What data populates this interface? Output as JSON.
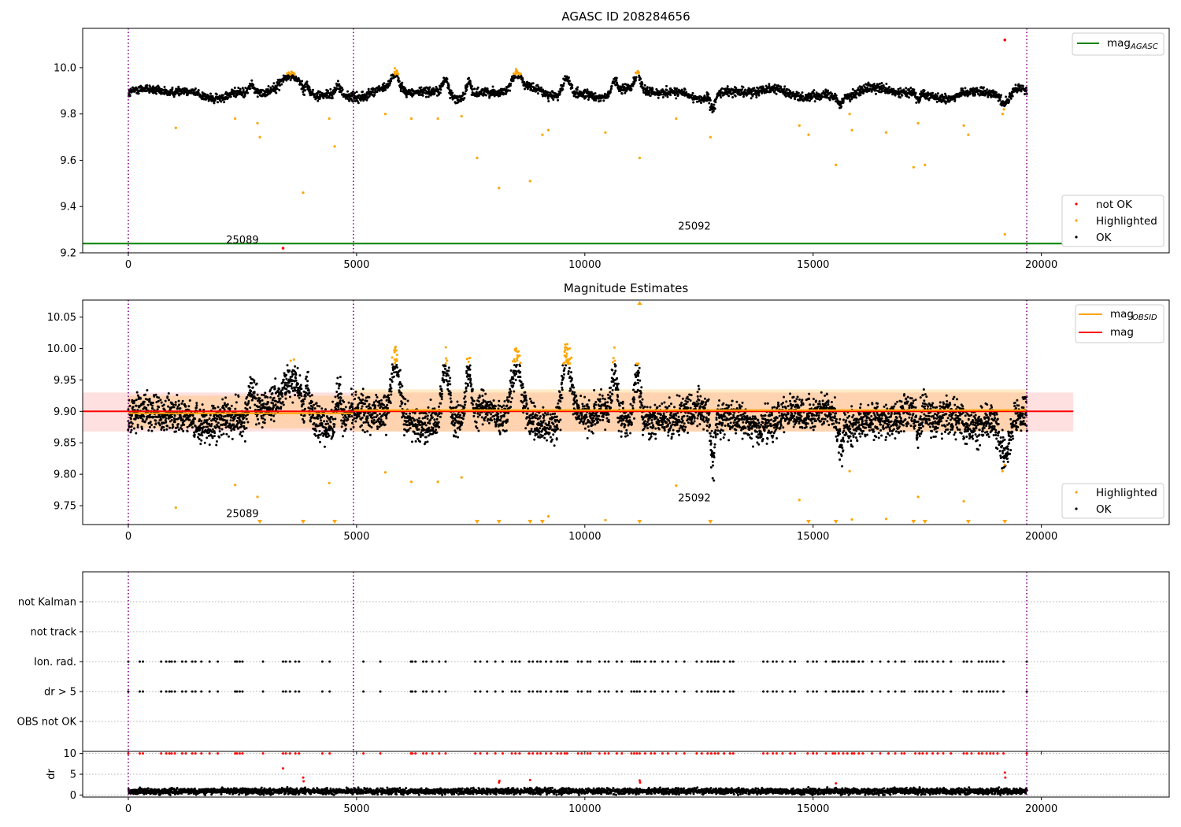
{
  "chart_data": [
    {
      "type": "scatter",
      "title": "AGASC ID 208284656",
      "xlim": [
        -1000,
        22800
      ],
      "ylim": [
        9.2,
        10.17
      ],
      "xticks": [
        0,
        5000,
        10000,
        15000,
        20000
      ],
      "yticks": [
        9.2,
        9.4,
        9.6,
        9.8,
        10.0
      ],
      "ytick_labels": [
        "9.2",
        "9.4",
        "9.6",
        "9.8",
        "10.0"
      ],
      "obsid_boundaries": [
        0,
        4930,
        19680
      ],
      "obsid_labels": [
        {
          "text": "25089",
          "x": 2500,
          "y": 9.24
        },
        {
          "text": "25092",
          "x": 12400,
          "y": 9.3
        }
      ],
      "reference_lines": [
        {
          "name": "mag",
          "subscript": "AGASC",
          "color": "#008000",
          "y": 9.24,
          "x_range": [
            -1000,
            20700
          ]
        }
      ],
      "series": [
        {
          "name": "OK",
          "color": "#000000",
          "baseline": 9.89,
          "spread": 0.025,
          "x_range": [
            0,
            19680
          ]
        },
        {
          "name": "Highlighted",
          "color": "#ffa500",
          "outliers_high_min": 9.97,
          "points": [
            [
              1040,
              9.74
            ],
            [
              2340,
              9.78
            ],
            [
              2830,
              9.76
            ],
            [
              2880,
              9.7
            ],
            [
              3830,
              9.46
            ],
            [
              4400,
              9.78
            ],
            [
              4520,
              9.66
            ],
            [
              5630,
              9.8
            ],
            [
              6200,
              9.78
            ],
            [
              6780,
              9.78
            ],
            [
              7300,
              9.79
            ],
            [
              7640,
              9.61
            ],
            [
              8120,
              9.48
            ],
            [
              8800,
              9.51
            ],
            [
              9070,
              9.71
            ],
            [
              9200,
              9.73
            ],
            [
              10450,
              9.72
            ],
            [
              11200,
              9.61
            ],
            [
              12000,
              9.78
            ],
            [
              12750,
              9.7
            ],
            [
              14700,
              9.75
            ],
            [
              14900,
              9.71
            ],
            [
              15500,
              9.58
            ],
            [
              15800,
              9.8
            ],
            [
              15850,
              9.73
            ],
            [
              16600,
              9.72
            ],
            [
              17200,
              9.57
            ],
            [
              17300,
              9.76
            ],
            [
              17450,
              9.58
            ],
            [
              18300,
              9.75
            ],
            [
              18400,
              9.71
            ],
            [
              19200,
              9.28
            ],
            [
              19150,
              9.8
            ],
            [
              19180,
              9.82
            ]
          ]
        },
        {
          "name": "not OK",
          "color": "#ff0000",
          "points": [
            [
              3390,
              9.22
            ],
            [
              19200,
              10.12
            ]
          ]
        }
      ],
      "legend": [
        {
          "label": "mag",
          "subscript": "AGASC",
          "kind": "line",
          "color": "#008000",
          "placement": "upper right"
        },
        {
          "label": "not OK",
          "kind": "point",
          "color": "#ff0000",
          "placement": "lower right"
        },
        {
          "label": "Highlighted",
          "kind": "point",
          "color": "#ffa500",
          "placement": "lower right"
        },
        {
          "label": "OK",
          "kind": "point",
          "color": "#000000",
          "placement": "lower right"
        }
      ]
    },
    {
      "type": "scatter",
      "title": "Magnitude Estimates",
      "xlim": [
        -1000,
        22800
      ],
      "ylim": [
        9.72,
        10.077
      ],
      "xticks": [
        0,
        5000,
        10000,
        15000,
        20000
      ],
      "yticks": [
        9.75,
        9.8,
        9.85,
        9.9,
        9.95,
        10.0,
        10.05
      ],
      "ytick_labels": [
        "9.75",
        "9.80",
        "9.85",
        "9.90",
        "9.95",
        "10.00",
        "10.05"
      ],
      "obsid_boundaries": [
        0,
        4930,
        19680
      ],
      "obsid_labels": [
        {
          "text": "25089",
          "x": 2500,
          "y": 9.732
        },
        {
          "text": "25092",
          "x": 12400,
          "y": 9.757
        }
      ],
      "bands": [
        {
          "color": "#ff0000",
          "opacity": 0.12,
          "x_range": [
            -1000,
            20700
          ],
          "y_range": [
            9.868,
            9.93
          ]
        },
        {
          "color": "#ffa500",
          "opacity": 0.22,
          "x_range": [
            0,
            4930
          ],
          "y_range": [
            9.873,
            9.925
          ]
        },
        {
          "color": "#ffa500",
          "opacity": 0.22,
          "x_range": [
            4930,
            19680
          ],
          "y_range": [
            9.868,
            9.935
          ]
        }
      ],
      "reference_lines": [
        {
          "name": "mag",
          "color": "#ff0000",
          "y": 9.9,
          "x_range": [
            -1000,
            20700
          ]
        },
        {
          "name": "mag",
          "subscript": "OBSID",
          "color": "#ffa500",
          "y": 9.897,
          "x_range": [
            0,
            4930
          ]
        },
        {
          "name": "mag",
          "subscript": "OBSID",
          "color": "#ffa500",
          "y": 9.902,
          "x_range": [
            4930,
            19680
          ]
        }
      ],
      "series": [
        {
          "name": "OK",
          "color": "#000000",
          "baseline": 9.89,
          "spread": 0.04,
          "x_range": [
            0,
            19680
          ]
        },
        {
          "name": "Highlighted",
          "color": "#ffa500",
          "outliers_high_min": 9.975,
          "points": [
            [
              1040,
              9.747
            ],
            [
              2340,
              9.783
            ],
            [
              2830,
              9.764
            ],
            [
              4400,
              9.786
            ],
            [
              5630,
              9.803
            ],
            [
              6200,
              9.788
            ],
            [
              6780,
              9.788
            ],
            [
              7300,
              9.795
            ],
            [
              12000,
              9.782
            ],
            [
              14700,
              9.759
            ],
            [
              15800,
              9.805
            ],
            [
              15850,
              9.728
            ],
            [
              16600,
              9.729
            ],
            [
              17300,
              9.764
            ],
            [
              18300,
              9.757
            ],
            [
              19150,
              9.805
            ],
            [
              19200,
              9.815
            ],
            [
              9200,
              9.733
            ],
            [
              10450,
              9.727
            ]
          ]
        },
        {
          "name": "Highlighted (below axis)",
          "color": "#ffa500",
          "marker": "triangle-down",
          "points": [
            [
              2880,
              9.72
            ],
            [
              3830,
              9.72
            ],
            [
              4520,
              9.72
            ],
            [
              7640,
              9.72
            ],
            [
              8120,
              9.72
            ],
            [
              8800,
              9.72
            ],
            [
              9070,
              9.72
            ],
            [
              11200,
              9.72
            ],
            [
              12750,
              9.72
            ],
            [
              14900,
              9.72
            ],
            [
              15500,
              9.72
            ],
            [
              17200,
              9.72
            ],
            [
              17450,
              9.72
            ],
            [
              18400,
              9.72
            ],
            [
              19200,
              9.72
            ]
          ]
        },
        {
          "name": "Highlighted (above axis)",
          "color": "#ffa500",
          "marker": "triangle-up",
          "points": [
            [
              11200,
              10.077
            ]
          ]
        }
      ],
      "legend": [
        {
          "label": "mag",
          "subscript": "OBSID",
          "kind": "line",
          "color": "#ffa500",
          "placement": "upper right"
        },
        {
          "label": "mag",
          "kind": "line",
          "color": "#ff0000",
          "placement": "upper right"
        },
        {
          "label": "Highlighted",
          "kind": "point",
          "color": "#ffa500",
          "placement": "lower right"
        },
        {
          "label": "OK",
          "kind": "point",
          "color": "#000000",
          "placement": "lower right"
        }
      ]
    },
    {
      "type": "scatter",
      "title": "",
      "xlim": [
        -1000,
        22800
      ],
      "obsid_boundaries": [
        0,
        4930,
        19680
      ],
      "categories": [
        "not Kalman",
        "not track",
        "Ion. rad.",
        "dr > 5",
        "OBS not OK"
      ],
      "flag_rows": {
        "not Kalman": [],
        "not track": [],
        "Ion. rad.": [
          0,
          250,
          320,
          720,
          830,
          900,
          950,
          1020,
          1180,
          1260,
          1400,
          1470,
          1600,
          1780,
          1960,
          2340,
          2380,
          2440,
          2500,
          2950,
          3390,
          3450,
          3540,
          3660,
          3740,
          4250,
          4410,
          5150,
          5520,
          6190,
          6220,
          6290,
          6460,
          6530,
          6660,
          6810,
          6950,
          7600,
          7710,
          7860,
          8040,
          8200,
          8400,
          8480,
          8570,
          8780,
          8860,
          8960,
          9030,
          9150,
          9260,
          9400,
          9480,
          9560,
          9610,
          9850,
          9930,
          10060,
          10120,
          10320,
          10440,
          10520,
          10700,
          10810,
          11020,
          11080,
          11140,
          11200,
          11320,
          11450,
          11530,
          11700,
          11820,
          12000,
          12180,
          12450,
          12560,
          12690,
          12770,
          12850,
          12920,
          13050,
          13180,
          13250,
          13910,
          14000,
          14120,
          14200,
          14330,
          14500,
          14600,
          14880,
          15000,
          15080,
          15280,
          15430,
          15480,
          15560,
          15660,
          15750,
          15850,
          15900,
          16000,
          16090,
          16290,
          16470,
          16650,
          16800,
          16940,
          17000,
          17240,
          17330,
          17400,
          17490,
          17620,
          17730,
          17850,
          18020,
          18300,
          18370,
          18470,
          18630,
          18700,
          18800,
          18880,
          18950,
          19040,
          19170,
          19680
        ],
        "dr > 5": [
          0,
          250,
          320,
          720,
          830,
          900,
          950,
          1020,
          1180,
          1260,
          1400,
          1470,
          1600,
          1780,
          1960,
          2340,
          2380,
          2440,
          2500,
          2950,
          3390,
          3450,
          3540,
          3660,
          3740,
          4250,
          4410,
          5150,
          5520,
          6190,
          6220,
          6290,
          6460,
          6530,
          6660,
          6810,
          6950,
          7600,
          7710,
          7860,
          8040,
          8200,
          8400,
          8480,
          8570,
          8780,
          8860,
          8960,
          9030,
          9150,
          9260,
          9400,
          9480,
          9560,
          9610,
          9850,
          9930,
          10060,
          10120,
          10320,
          10440,
          10520,
          10700,
          10810,
          11020,
          11080,
          11140,
          11200,
          11320,
          11450,
          11530,
          11700,
          11820,
          12000,
          12180,
          12450,
          12560,
          12690,
          12770,
          12850,
          12920,
          13050,
          13180,
          13250,
          13910,
          14000,
          14120,
          14200,
          14330,
          14500,
          14600,
          14880,
          15000,
          15080,
          15280,
          15430,
          15480,
          15560,
          15660,
          15750,
          15850,
          15900,
          16000,
          16090,
          16290,
          16470,
          16650,
          16800,
          16940,
          17000,
          17240,
          17330,
          17400,
          17490,
          17620,
          17730,
          17850,
          18020,
          18300,
          18370,
          18470,
          18630,
          18700,
          18800,
          18880,
          18950,
          19040,
          19170,
          19680
        ],
        "OBS not OK": []
      },
      "flag_color": "#000000"
    },
    {
      "type": "scatter",
      "title": "",
      "ylabel": "dr",
      "xlim": [
        -1000,
        22800
      ],
      "ylim": [
        -0.5,
        10.5
      ],
      "xticks": [
        0,
        5000,
        10000,
        15000,
        20000
      ],
      "yticks": [
        0,
        5,
        10
      ],
      "obsid_boundaries": [
        0,
        4930,
        19680
      ],
      "series": [
        {
          "name": "dr",
          "color": "#000000",
          "baseline": 0.9,
          "spread": 0.5,
          "x_range": [
            0,
            19680
          ]
        },
        {
          "name": "dr > 5",
          "color": "#ff0000",
          "clipped_value": 10,
          "points": [
            [
              3390,
              6.4
            ],
            [
              3830,
              4.2
            ],
            [
              3840,
              3.3
            ],
            [
              8120,
              3.0
            ],
            [
              8130,
              3.4
            ],
            [
              8800,
              3.6
            ],
            [
              11200,
              3.5
            ],
            [
              11210,
              3.0
            ],
            [
              15500,
              2.8
            ],
            [
              19200,
              5.4
            ],
            [
              19210,
              4.2
            ]
          ]
        }
      ]
    }
  ]
}
